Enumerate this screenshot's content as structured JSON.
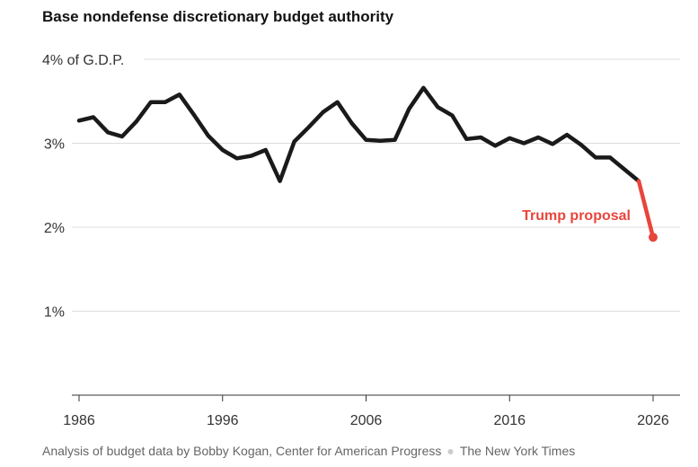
{
  "chart_data": {
    "type": "line",
    "title": "Base nondefense discretionary budget authority",
    "y_unit_label": "of G.D.P.",
    "xlim": [
      1986,
      2026
    ],
    "ylim": [
      0,
      4
    ],
    "x_ticks": [
      1986,
      1996,
      2006,
      2016,
      2026
    ],
    "x_tick_labels": [
      "1986",
      "1996",
      "2006",
      "2016",
      "2026"
    ],
    "y_ticks": [
      1,
      2,
      3,
      4
    ],
    "y_tick_labels": [
      "1%",
      "2%",
      "3%",
      "4%"
    ],
    "grid": true,
    "series": [
      {
        "color": "#1a1a1a",
        "x": [
          1986,
          1987,
          1988,
          1989,
          1990,
          1991,
          1992,
          1993,
          1994,
          1995,
          1996,
          1997,
          1998,
          1999,
          2000,
          2001,
          2002,
          2003,
          2004,
          2005,
          2006,
          2007,
          2008,
          2009,
          2010,
          2011,
          2012,
          2013,
          2014,
          2015,
          2016,
          2017,
          2018,
          2019,
          2020,
          2021,
          2022,
          2023,
          2024,
          2025
        ],
        "y": [
          3.27,
          3.31,
          3.13,
          3.08,
          3.26,
          3.49,
          3.49,
          3.58,
          3.34,
          3.09,
          2.92,
          2.82,
          2.85,
          2.92,
          2.55,
          3.02,
          3.19,
          3.37,
          3.49,
          3.24,
          3.04,
          3.03,
          3.04,
          3.41,
          3.66,
          3.43,
          3.33,
          3.05,
          3.07,
          2.97,
          3.06,
          3.0,
          3.07,
          2.99,
          3.1,
          2.98,
          2.83,
          2.83,
          2.69,
          2.55
        ]
      },
      {
        "name": "Trump proposal",
        "color": "#e8453c",
        "x": [
          2025,
          2026
        ],
        "y": [
          2.55,
          1.88
        ]
      }
    ],
    "annotations": [
      {
        "text": "Trump proposal",
        "color": "#e8453c"
      }
    ]
  },
  "footer": {
    "source": "Analysis of budget data by Bobby Kogan, Center for American Progress",
    "credit": "The New York Times"
  }
}
